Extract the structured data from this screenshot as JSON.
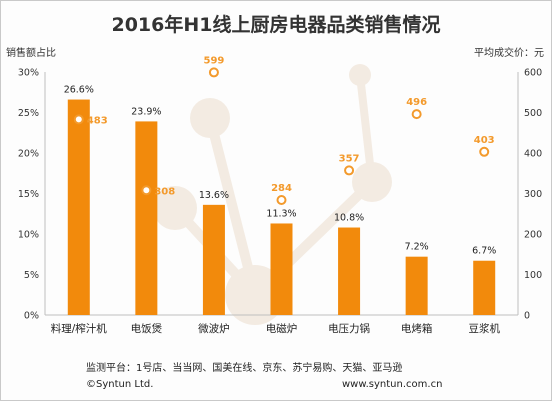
{
  "chart_data": {
    "type": "bar",
    "title": "2016年H1线上厨房电器品类销售情况",
    "ylabel_left": "销售额占比",
    "ylabel_right": "平均成交价：元",
    "categories": [
      "料理/榨汁机",
      "电饭煲",
      "微波炉",
      "电磁炉",
      "电压力锅",
      "电烤箱",
      "豆浆机"
    ],
    "bar_values": [
      26.6,
      23.9,
      13.6,
      11.3,
      10.8,
      7.2,
      6.7
    ],
    "bar_labels": [
      "26.6%",
      "23.9%",
      "13.6%",
      "11.3%",
      "10.8%",
      "7.2%",
      "6.7%"
    ],
    "price_values": [
      483,
      308,
      599,
      284,
      357,
      496,
      403
    ],
    "price_labels": [
      "483",
      "308",
      "599",
      "284",
      "357",
      "496",
      "403"
    ],
    "ylim_left": [
      0,
      30
    ],
    "ylim_right": [
      0,
      600
    ],
    "yticks_left": [
      "0%",
      "5%",
      "10%",
      "15%",
      "20%",
      "25%",
      "30%"
    ],
    "yticks_right": [
      "0",
      "100",
      "200",
      "300",
      "400",
      "500",
      "600"
    ],
    "grid": false,
    "colors": {
      "bar": "#f28a0c",
      "marker": "#f39a2c",
      "axis": "#bfbfbf",
      "watermark": "#f3ebe2"
    }
  },
  "footer": {
    "platforms": "监测平台：1号店、当当网、国美在线、京东、苏宁易购、天猫、亚马逊",
    "copyright": "©Syntun Ltd.",
    "website": "www.syntun.com.cn"
  }
}
